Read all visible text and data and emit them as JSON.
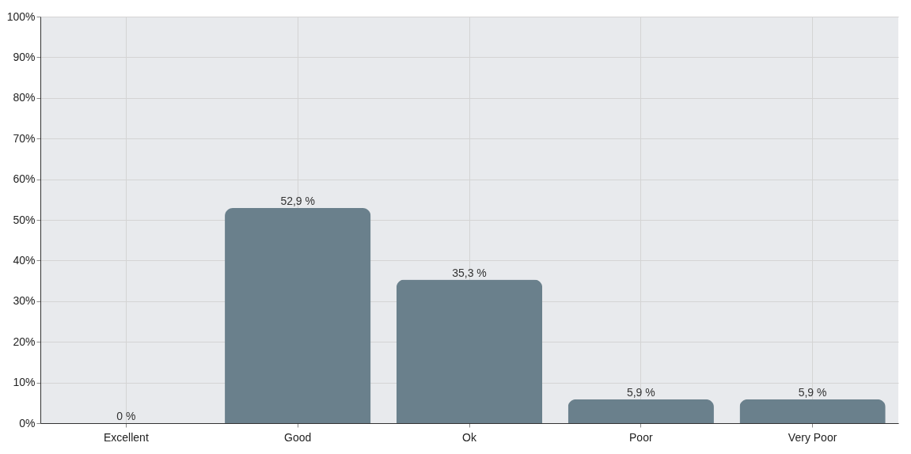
{
  "chart_data": {
    "type": "bar",
    "categories": [
      "Excellent",
      "Good",
      "Ok",
      "Poor",
      "Very Poor"
    ],
    "values": [
      0,
      52.9,
      35.3,
      5.9,
      5.9
    ],
    "value_labels": [
      "0 %",
      "52,9 %",
      "35,3 %",
      "5,9 %",
      "5,9 %"
    ],
    "color": "#6a808c",
    "ylim": [
      0,
      100
    ],
    "yticks": [
      {
        "value": 0,
        "label": "0%"
      },
      {
        "value": 10,
        "label": "10%"
      },
      {
        "value": 20,
        "label": "20%"
      },
      {
        "value": 30,
        "label": "30%"
      },
      {
        "value": 40,
        "label": "40%"
      },
      {
        "value": 50,
        "label": "50%"
      },
      {
        "value": 60,
        "label": "60%"
      },
      {
        "value": 70,
        "label": "70%"
      },
      {
        "value": 80,
        "label": "80%"
      },
      {
        "value": 90,
        "label": "90%"
      },
      {
        "value": 100,
        "label": "100%"
      }
    ],
    "grid": true
  }
}
